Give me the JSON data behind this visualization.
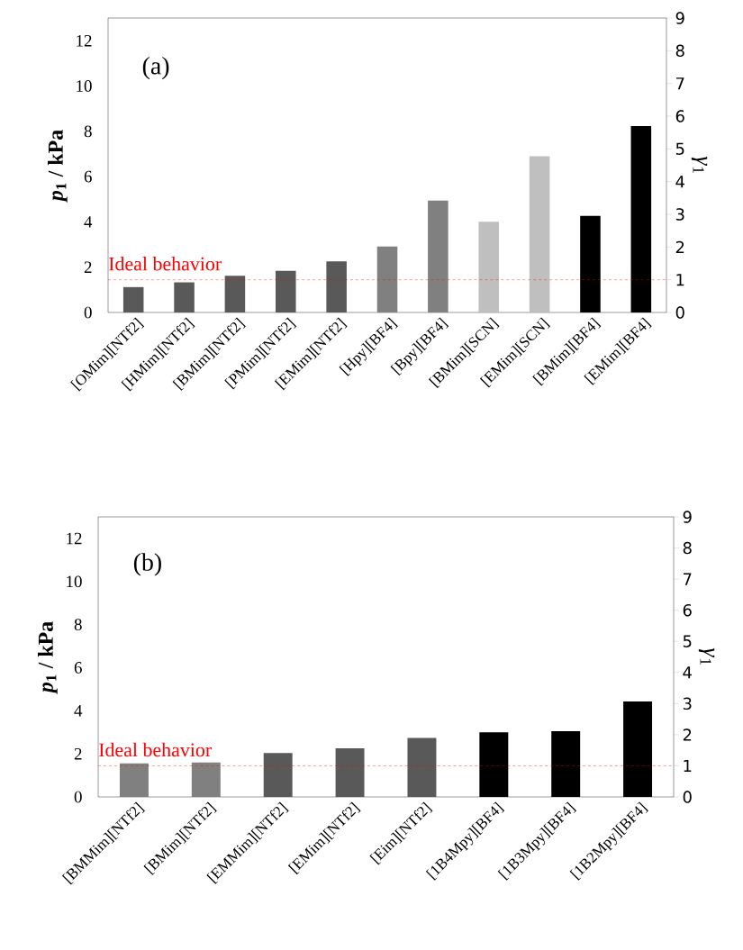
{
  "chart_data": [
    {
      "type": "bar",
      "annotations": [
        "(a)"
      ],
      "ylabel": "*p*$_{1}$ / kPa",
      "y2label": "*γ*$_{1}$",
      "categories": [
        "[OMim][NTf2]",
        "[HMim][NTf2]",
        "[BMim][NTf2]",
        "[PMim][NTf2]",
        "[EMim][NTf2]",
        "[Hpy][BF4]",
        "[Bpy][BF4]",
        "[BMim][SCN]",
        "[EMim][SCN]",
        "[BMim][BF4]",
        "[EMim][BF4]"
      ],
      "values": [
        1.12,
        1.33,
        1.62,
        1.84,
        2.26,
        2.91,
        4.94,
        4.01,
        6.9,
        4.26,
        8.23
      ],
      "colors": [
        "#595959",
        "#595959",
        "#595959",
        "#595959",
        "#595959",
        "#808080",
        "#808080",
        "#bfbfbf",
        "#bfbfbf",
        "#000000",
        "#000000"
      ],
      "ylim": [
        0,
        13
      ],
      "yticks": [
        0,
        2,
        4,
        6,
        8,
        10,
        12
      ],
      "y2lim": [
        0,
        9
      ],
      "y2ticks": [
        0,
        1,
        2,
        3,
        4,
        5,
        6,
        7,
        8,
        9
      ],
      "ref_lines": [
        {
          "axis": "y2",
          "value": 1,
          "label": "Ideal behavior",
          "color": "#ff0000",
          "line_style": "dashed"
        }
      ]
    },
    {
      "type": "bar",
      "annotations": [
        "(b)"
      ],
      "ylabel": "*p*$_{1}$ / kPa",
      "y2label": "*γ*$_{1}$",
      "categories": [
        "[BMMim][NTf2]",
        "[BMim][NTf2]",
        "[EMMim][NTf2]",
        "[EMim][NTf2]",
        "[Eim][NTf2]",
        "[1B4Mpy][BF4]",
        "[1B3Mpy][BF4]",
        "[1B2Mpy][BF4]"
      ],
      "values": [
        1.56,
        1.6,
        2.04,
        2.26,
        2.74,
        3.0,
        3.05,
        4.43
      ],
      "colors": [
        "#808080",
        "#808080",
        "#595959",
        "#595959",
        "#595959",
        "#000000",
        "#000000",
        "#000000"
      ],
      "ylim": [
        0,
        13
      ],
      "yticks": [
        0,
        2,
        4,
        6,
        8,
        10,
        12
      ],
      "y2lim": [
        0,
        9
      ],
      "y2ticks": [
        0,
        1,
        2,
        3,
        4,
        5,
        6,
        7,
        8,
        9
      ],
      "ref_lines": [
        {
          "axis": "y2",
          "value": 1,
          "label": "Ideal behavior",
          "color": "#ff0000",
          "line_style": "dashed"
        }
      ]
    }
  ]
}
